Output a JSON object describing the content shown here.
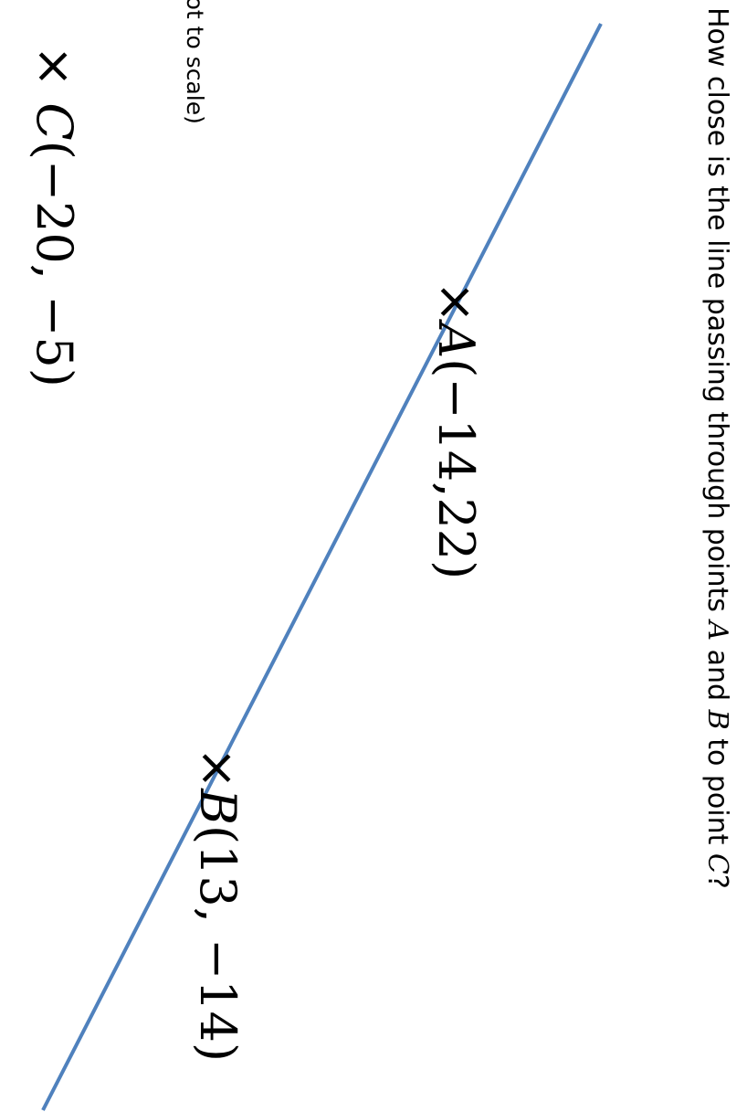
{
  "question": {
    "before": "How close is the line passing through points ",
    "a": "A",
    "middle": " and ",
    "b": "B",
    "after": " to point ",
    "c": "C",
    "end": "?"
  },
  "note": "(not to scale)",
  "points": [
    {
      "marker": "×",
      "name": "A",
      "coords": "(−14,22)"
    },
    {
      "marker": "×",
      "name": "B",
      "coords": "(13, −14)"
    },
    {
      "marker": "×",
      "name": "C",
      "coords": "(−20, −5)"
    }
  ],
  "line": {
    "color": "#4f81bd"
  }
}
